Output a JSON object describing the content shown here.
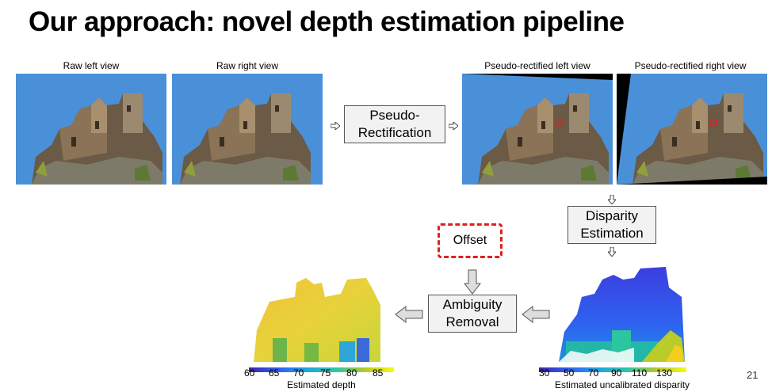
{
  "title": "Our approach: novel depth estimation pipeline",
  "captions": {
    "raw_left": "Raw left view",
    "raw_right": "Raw right view",
    "rect_left": "Pseudo-rectified left view",
    "rect_right": "Pseudo-rectified right view"
  },
  "boxes": {
    "pseudo_rectification": [
      "Pseudo-",
      "Rectification"
    ],
    "disparity_estimation": [
      "Disparity",
      "Estimation"
    ],
    "offset": "Offset",
    "ambiguity_removal": [
      "Ambiguity",
      "Removal"
    ]
  },
  "depth_colorbar": {
    "ticks": [
      "60",
      "65",
      "70",
      "75",
      "80",
      "85"
    ],
    "label": "Estimated depth"
  },
  "disparity_colorbar": {
    "ticks": [
      "30",
      "50",
      "70",
      "90",
      "110",
      "130"
    ],
    "label": "Estimated uncalibrated disparity"
  },
  "page_number": "21",
  "colors": {
    "sky": "#4a90d9",
    "offset_border": "#e02020",
    "box_fill": "#f2f2f2"
  }
}
